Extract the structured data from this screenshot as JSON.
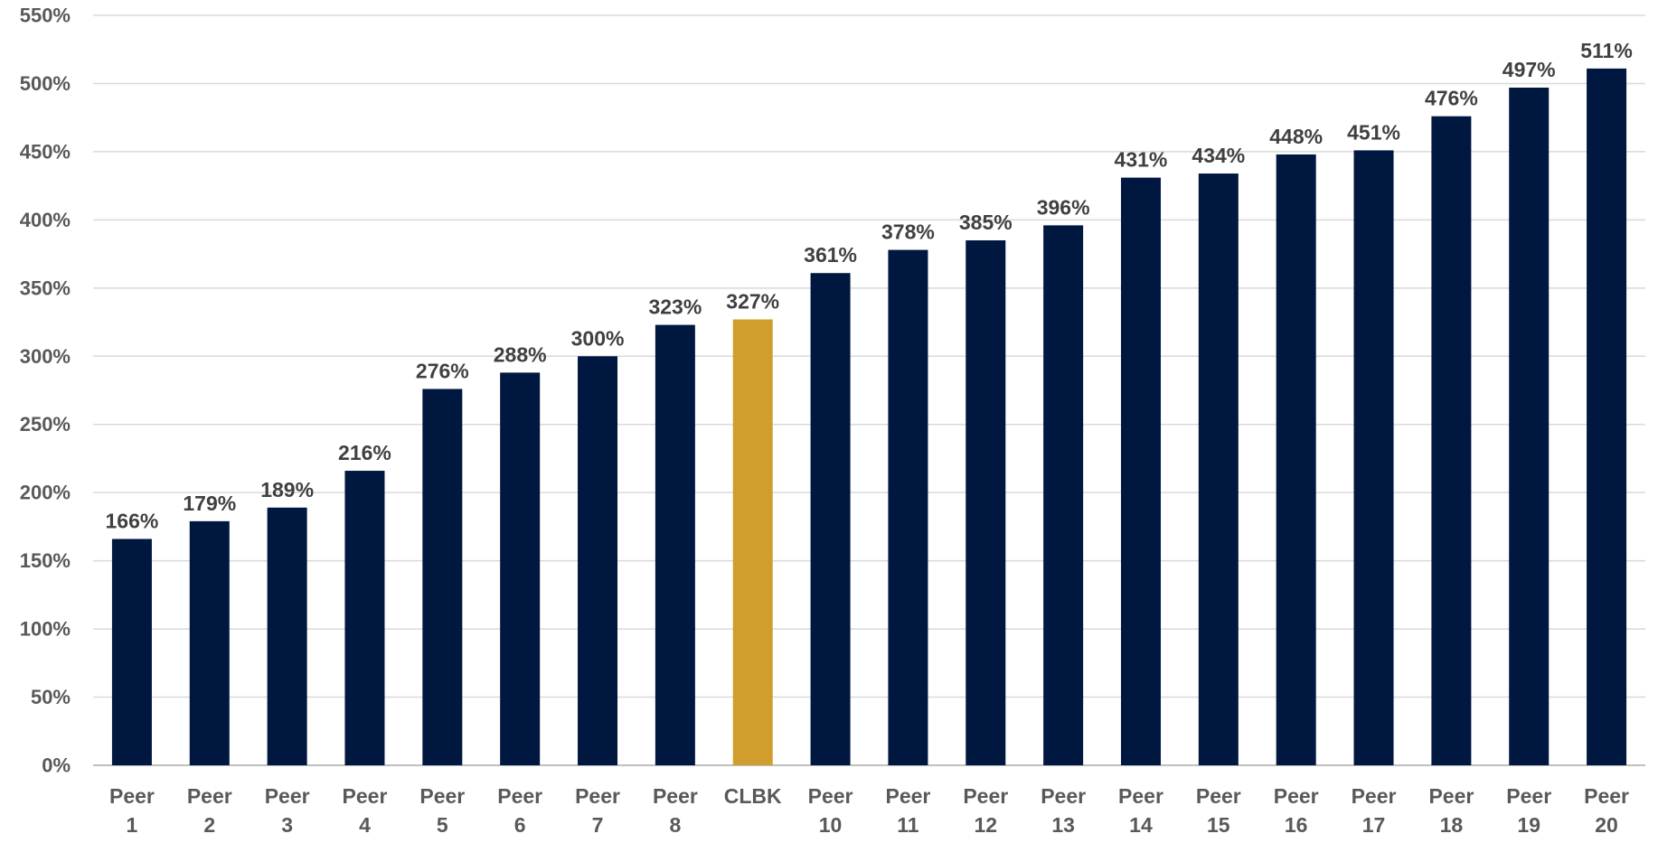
{
  "chart_data": {
    "type": "bar",
    "title": "",
    "xlabel": "",
    "ylabel": "",
    "categories": [
      [
        "Peer",
        "1"
      ],
      [
        "Peer",
        "2"
      ],
      [
        "Peer",
        "3"
      ],
      [
        "Peer",
        "4"
      ],
      [
        "Peer",
        "5"
      ],
      [
        "Peer",
        "6"
      ],
      [
        "Peer",
        "7"
      ],
      [
        "Peer",
        "8"
      ],
      [
        "CLBK"
      ],
      [
        "Peer",
        "10"
      ],
      [
        "Peer",
        "11"
      ],
      [
        "Peer",
        "12"
      ],
      [
        "Peer",
        "13"
      ],
      [
        "Peer",
        "14"
      ],
      [
        "Peer",
        "15"
      ],
      [
        "Peer",
        "16"
      ],
      [
        "Peer",
        "17"
      ],
      [
        "Peer",
        "18"
      ],
      [
        "Peer",
        "19"
      ],
      [
        "Peer",
        "20"
      ]
    ],
    "values": [
      166,
      179,
      189,
      216,
      276,
      288,
      300,
      323,
      327,
      361,
      378,
      385,
      396,
      431,
      434,
      448,
      451,
      476,
      497,
      511
    ],
    "data_labels": [
      "166%",
      "179%",
      "189%",
      "216%",
      "276%",
      "288%",
      "300%",
      "323%",
      "327%",
      "361%",
      "378%",
      "385%",
      "396%",
      "431%",
      "434%",
      "448%",
      "451%",
      "476%",
      "497%",
      "511%"
    ],
    "highlight_category": "CLBK",
    "ylim": [
      0,
      550
    ],
    "yticks": [
      0,
      50,
      100,
      150,
      200,
      250,
      300,
      350,
      400,
      450,
      500,
      550
    ],
    "ytick_labels": [
      "0%",
      "50%",
      "100%",
      "150%",
      "200%",
      "250%",
      "300%",
      "350%",
      "400%",
      "450%",
      "500%",
      "550%"
    ],
    "grid": true,
    "legend": "none",
    "colors": {
      "bar": "#001740",
      "highlight": "#D19D2C",
      "grid": "#D9D9D9",
      "axis": "#BFBFBF",
      "tick_text": "#595959",
      "label_text": "#404040"
    }
  }
}
